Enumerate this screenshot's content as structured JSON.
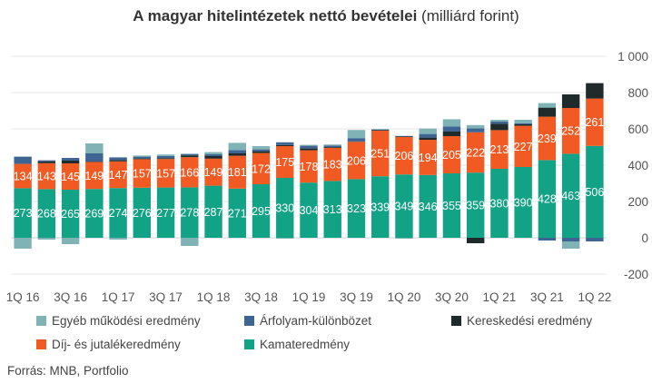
{
  "title_bold": "A magyar hitelintézetek nettó bevételei",
  "title_normal": "(milliárd forint)",
  "source": "Forrás: MNB, Portfolio",
  "colors": {
    "kamat": "#12a386",
    "dij": "#f25a23",
    "kereskedesi": "#1e2b2a",
    "arfolyam": "#3d6492",
    "egyeb": "#7fb3b5",
    "grid": "#e6e6e6",
    "axis_text": "#555555"
  },
  "legend": [
    {
      "label": "Egyéb működési eredmény",
      "series": "egyeb"
    },
    {
      "label": "Árfolyam-különbözet",
      "series": "arfolyam"
    },
    {
      "label": "Kereskedési eredmény",
      "series": "kereskedesi"
    },
    {
      "label": "Díj- és jutalékeredmény",
      "series": "dij"
    },
    {
      "label": "Kamateredmény",
      "series": "kamat"
    }
  ],
  "chart_data": {
    "type": "bar",
    "stacked": true,
    "title": "A magyar hitelintézetek nettó bevételei (milliárd forint)",
    "categories": [
      "1Q 16",
      "2Q 16",
      "3Q 16",
      "4Q 16",
      "1Q 17",
      "2Q 17",
      "3Q 17",
      "4Q 17",
      "1Q 18",
      "2Q 18",
      "3Q 18",
      "4Q 18",
      "1Q 19",
      "2Q 19",
      "3Q 19",
      "4Q 19",
      "1Q 20",
      "2Q 20",
      "3Q 20",
      "4Q 20",
      "1Q 21",
      "2Q 21",
      "3Q 21",
      "4Q 21",
      "1Q 22"
    ],
    "x_tick_labels": [
      "1Q 16",
      "",
      "3Q 16",
      "",
      "1Q 17",
      "",
      "3Q 17",
      "",
      "1Q 18",
      "",
      "3Q 18",
      "",
      "1Q 19",
      "",
      "3Q 19",
      "",
      "1Q 20",
      "",
      "3Q 20",
      "",
      "1Q 21",
      "",
      "3Q 21",
      "",
      "1Q 22"
    ],
    "ylim": [
      -200,
      1000
    ],
    "yticks": [
      -200,
      0,
      200,
      400,
      600,
      800,
      1000
    ],
    "ytick_labels": [
      "-200",
      "0",
      "200",
      "400",
      "600",
      "800",
      "1 000"
    ],
    "y_axis_side": "right",
    "legend_position": "bottom",
    "grid": true,
    "series": [
      {
        "key": "kamat",
        "name": "Kamateredmény",
        "labeled": true,
        "values": [
          273,
          268,
          265,
          269,
          274,
          276,
          277,
          278,
          287,
          271,
          295,
          330,
          304,
          313,
          323,
          339,
          349,
          346,
          355,
          359,
          380,
          390,
          428,
          463,
          506
        ]
      },
      {
        "key": "dij",
        "name": "Díj- és jutalékeredmény",
        "labeled": true,
        "values": [
          134,
          143,
          145,
          149,
          147,
          157,
          157,
          166,
          149,
          181,
          172,
          175,
          178,
          183,
          206,
          251,
          206,
          194,
          205,
          222,
          213,
          227,
          239,
          252,
          261
        ]
      },
      {
        "key": "kereskedesi",
        "name": "Kereskedési eredmény",
        "labeled": false,
        "values": [
          0,
          10,
          15,
          2,
          8,
          4,
          5,
          10,
          14,
          13,
          10,
          6,
          10,
          4,
          2,
          4,
          4,
          12,
          25,
          -30,
          35,
          8,
          50,
          75,
          85
        ]
      },
      {
        "key": "arfolyam",
        "name": "Árfolyam-különbözet",
        "labeled": false,
        "values": [
          40,
          6,
          15,
          45,
          14,
          10,
          12,
          8,
          10,
          18,
          10,
          15,
          15,
          8,
          18,
          2,
          2,
          20,
          28,
          22,
          12,
          5,
          -15,
          -20,
          -20
        ]
      },
      {
        "key": "egyeb",
        "name": "Egyéb működési eredmény",
        "labeled": false,
        "values": [
          -60,
          -10,
          -35,
          55,
          -10,
          6,
          8,
          -45,
          12,
          40,
          18,
          -5,
          5,
          6,
          45,
          4,
          -5,
          30,
          40,
          18,
          10,
          20,
          25,
          -40,
          0
        ]
      }
    ]
  }
}
